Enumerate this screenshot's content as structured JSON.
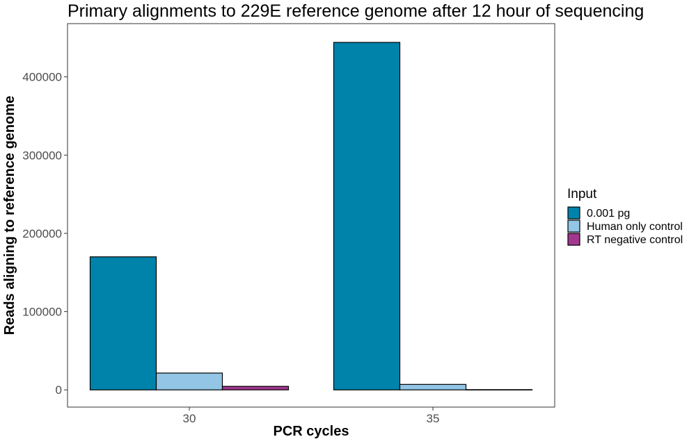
{
  "chart_data": {
    "type": "bar",
    "title": "Primary alignments to 229E reference genome after 12 hour of sequencing",
    "xlabel": "PCR cycles",
    "ylabel": "Reads aligning to reference genome",
    "categories": [
      "30",
      "35"
    ],
    "series": [
      {
        "name": "0.001 pg",
        "color": "#0083ab",
        "values": [
          170000,
          444000
        ]
      },
      {
        "name": "Human only control",
        "color": "#92c5e6",
        "values": [
          21500,
          7000
        ]
      },
      {
        "name": "RT negative control",
        "color": "#a2378f",
        "values": [
          4500,
          300
        ]
      }
    ],
    "ylim": [
      -22000,
      468000
    ],
    "yticks": [
      0,
      100000,
      200000,
      300000,
      400000
    ],
    "legend": {
      "title": "Input",
      "position": "right"
    },
    "grid": false
  }
}
